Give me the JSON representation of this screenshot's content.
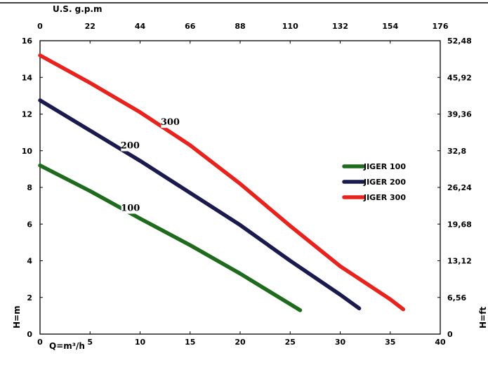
{
  "chart_data": {
    "type": "line",
    "x_axis_bottom": {
      "label": "Q=m³/h",
      "min": 0,
      "max": 40,
      "ticks": [
        "0",
        "5",
        "10",
        "15",
        "20",
        "25",
        "30",
        "35",
        "40"
      ]
    },
    "x_axis_top": {
      "label": "U.S. g.p.m",
      "min": 0,
      "max": 176,
      "ticks": [
        "0",
        "22",
        "44",
        "66",
        "88",
        "110",
        "132",
        "154",
        "176"
      ]
    },
    "y_axis_left": {
      "label": "H=m",
      "min": 0,
      "max": 16,
      "ticks": [
        "0",
        "2",
        "4",
        "6",
        "8",
        "10",
        "12",
        "14",
        "16"
      ]
    },
    "y_axis_right": {
      "label": "H=ft",
      "min": 0,
      "max": 52.48,
      "ticks": [
        "0",
        "6,56",
        "13,12",
        "19,68",
        "26,24",
        "32,8",
        "39,36",
        "45,92",
        "52,48"
      ]
    },
    "grid": false,
    "legend_position": "right",
    "series": [
      {
        "name": "JIGER 100",
        "curve_label": "100",
        "color": "#1e6b1e",
        "points": [
          [
            0,
            9.2
          ],
          [
            5,
            7.8
          ],
          [
            10,
            6.3
          ],
          [
            15,
            4.85
          ],
          [
            20,
            3.3
          ],
          [
            26,
            1.3
          ]
        ]
      },
      {
        "name": "JIGER 200",
        "curve_label": "200",
        "color": "#1a1a4e",
        "points": [
          [
            0,
            12.75
          ],
          [
            5,
            11.1
          ],
          [
            10,
            9.45
          ],
          [
            15,
            7.7
          ],
          [
            20,
            5.95
          ],
          [
            25,
            4.0
          ],
          [
            30,
            2.15
          ],
          [
            31.9,
            1.4
          ]
        ]
      },
      {
        "name": "JIGER 300",
        "curve_label": "300",
        "color": "#e8221c",
        "points": [
          [
            0,
            15.2
          ],
          [
            5,
            13.7
          ],
          [
            10,
            12.1
          ],
          [
            15,
            10.3
          ],
          [
            20,
            8.2
          ],
          [
            25,
            5.9
          ],
          [
            30,
            3.7
          ],
          [
            35,
            1.9
          ],
          [
            36.3,
            1.35
          ]
        ]
      }
    ]
  }
}
